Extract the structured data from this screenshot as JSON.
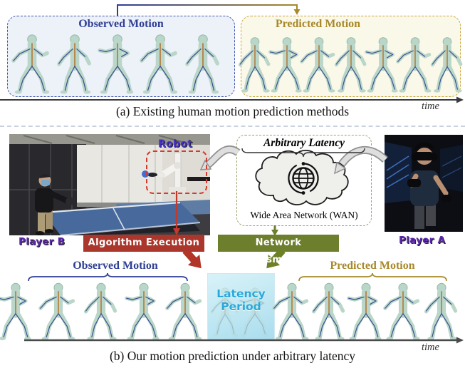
{
  "panel_a": {
    "observed_label": "Observed Motion",
    "predicted_label": "Predicted Motion",
    "time_label": "time",
    "caption": "(a) Existing human motion prediction methods",
    "observed_figure_count": 5,
    "predicted_figure_count": 7
  },
  "panel_b": {
    "robot_label": "Robot",
    "player_b_label": "Player B",
    "player_a_label": "Player A",
    "arbitrary_latency_label": "Arbitrary Latency",
    "wan_label": "Wide Area Network (WAN)",
    "algorithm_execution_label": "Algorithm Execution",
    "network_transmission_label": "Network Transmission",
    "observed_label": "Observed Motion",
    "predicted_label": "Predicted Motion",
    "latency_period_label": "Latency Period",
    "time_label": "time",
    "caption": "(b) Our motion prediction under arbitrary latency",
    "observed_figure_count": 5,
    "predicted_figure_count": 5,
    "latency_ghost_count": 2
  },
  "colors": {
    "observed_blue": "#2e3f96",
    "predicted_gold": "#a8892a",
    "observed_box_border": "#4054ae",
    "predicted_box_border": "#c9a43c",
    "robot_box_red": "#d23c30",
    "algorithm_red_bg": "#ab372c",
    "network_green_bg": "#6d7e2d",
    "player_purple": "#5a28a8",
    "latency_cyan_text": "#29a9da",
    "wan_border_olive": "#9aa46b",
    "figure_body_green": "#b9d6c8"
  }
}
